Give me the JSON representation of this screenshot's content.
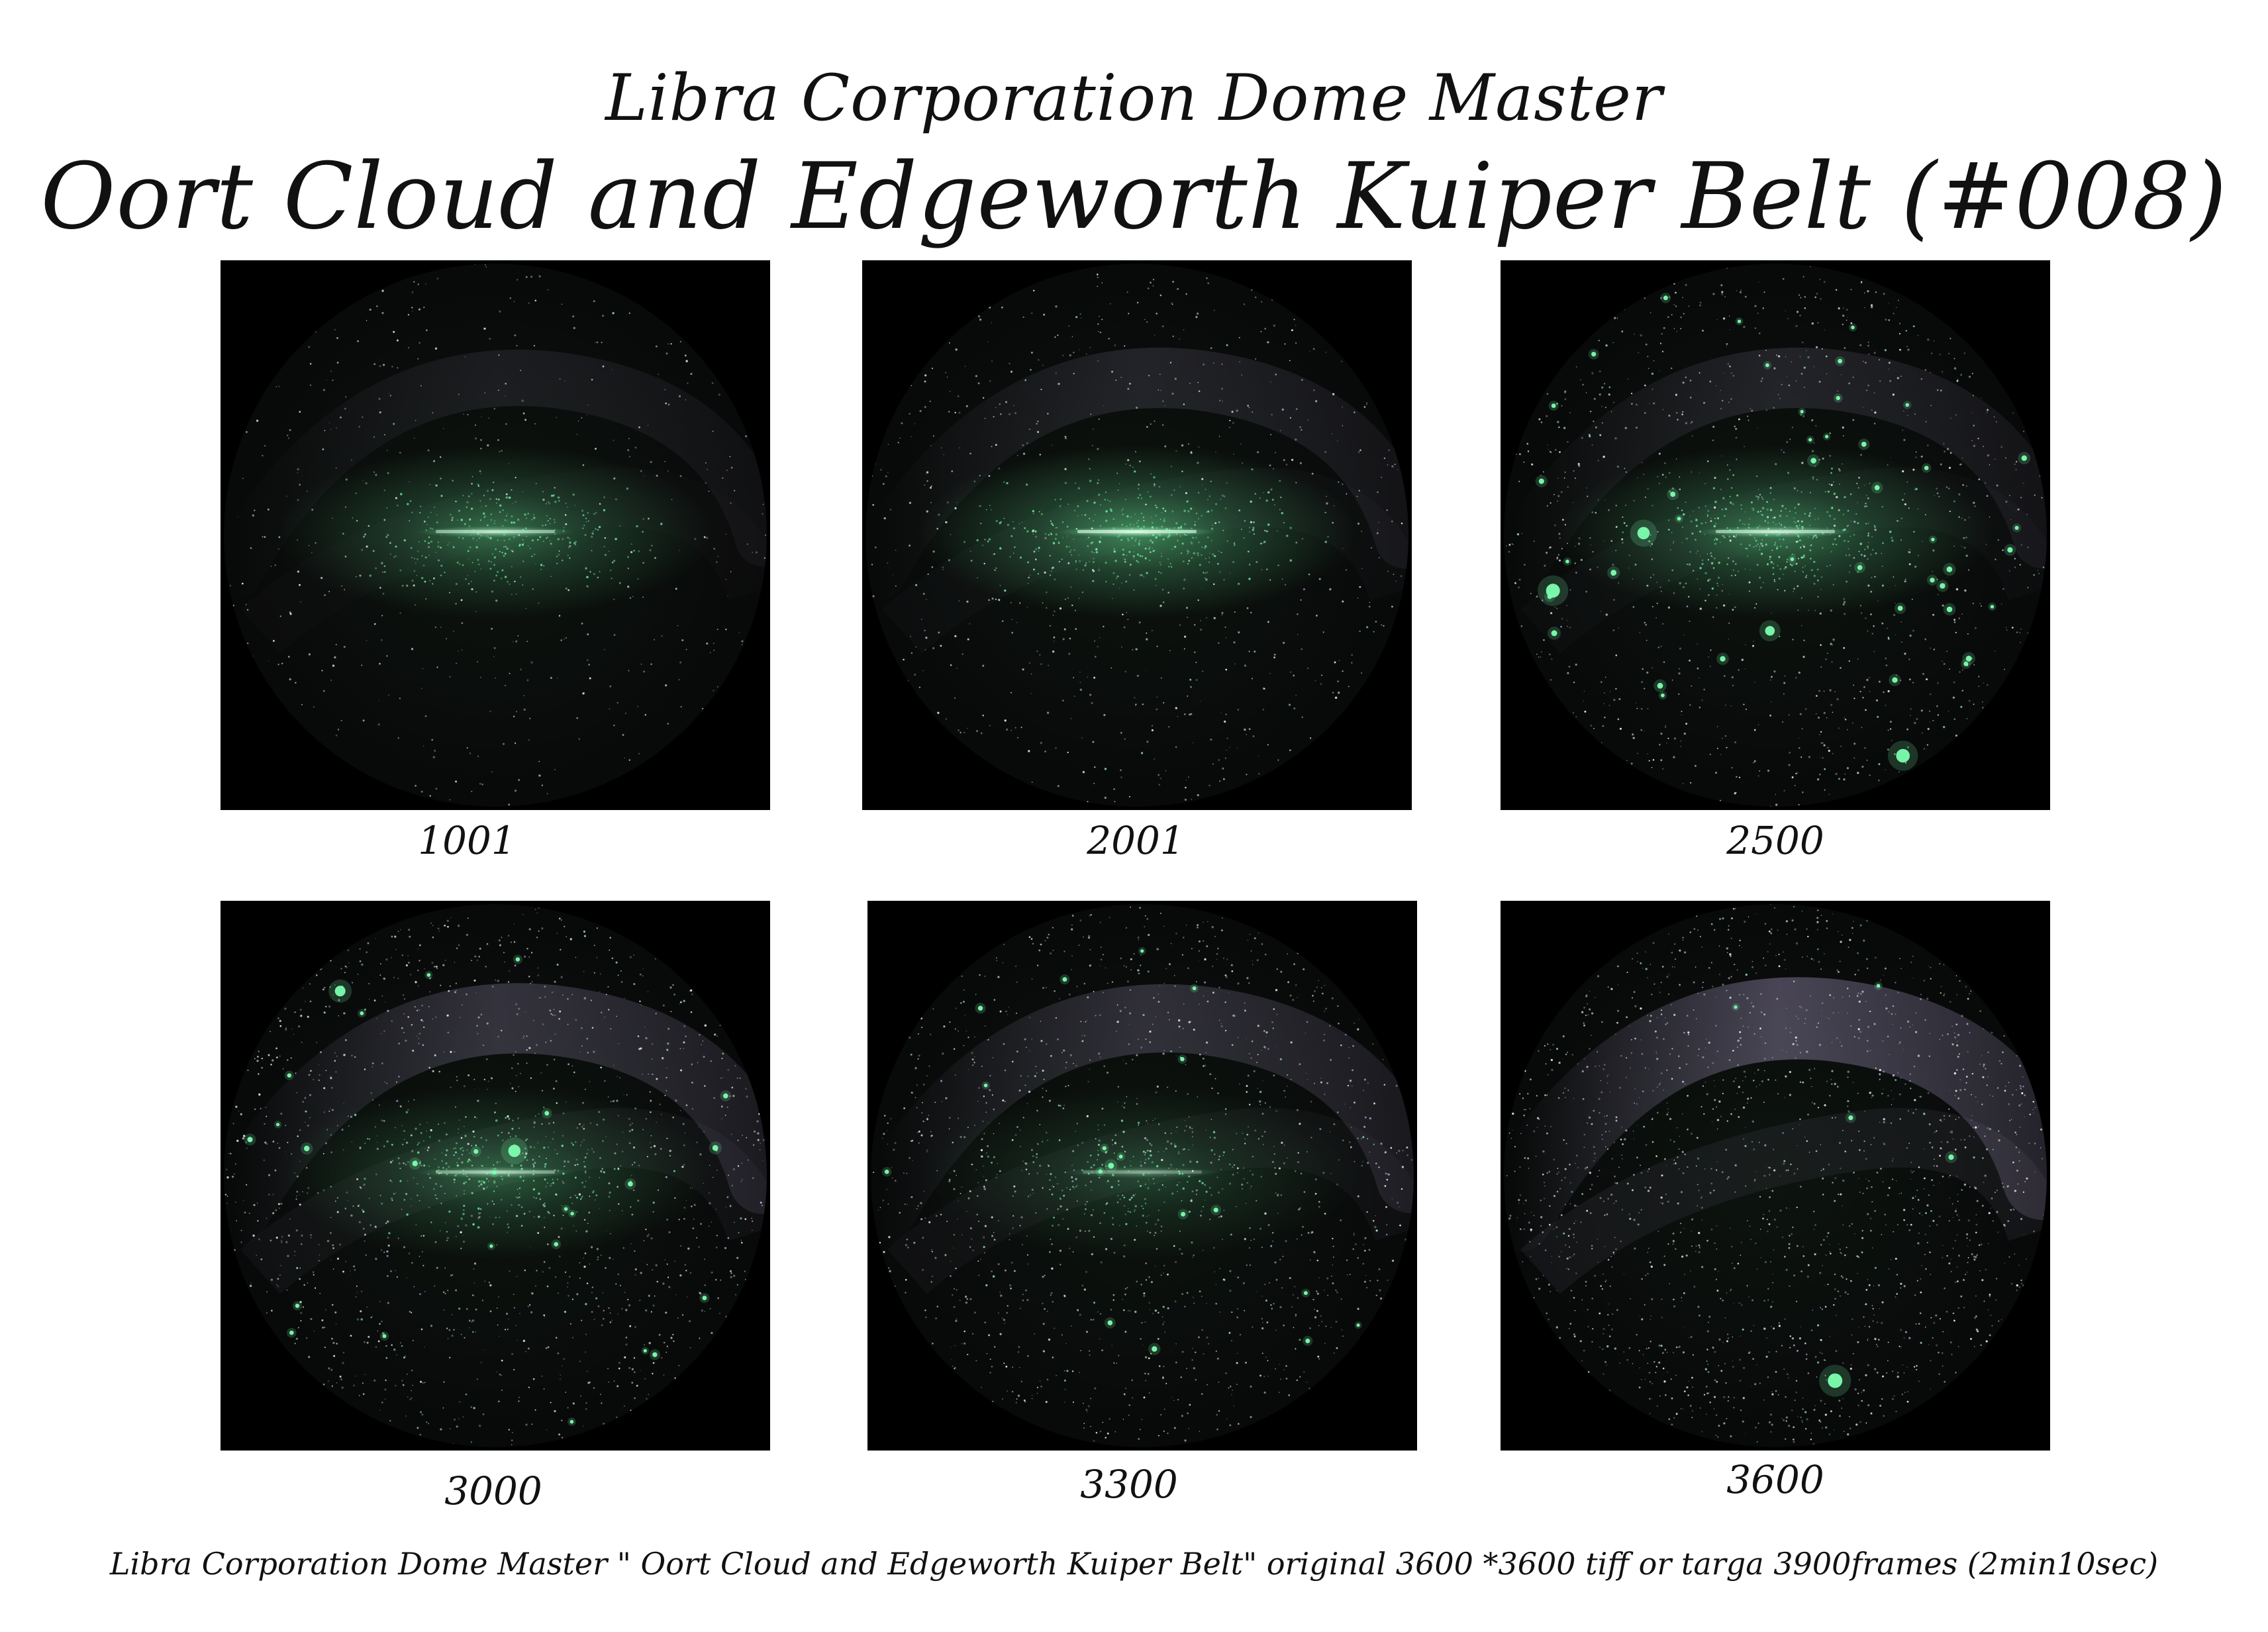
{
  "header": {
    "subtitle": "Libra Corporation Dome Master",
    "title": "Oort Cloud and Edgeworth Kuiper Belt (#008)"
  },
  "frames": [
    {
      "label": "1001",
      "belt": 0.55,
      "stars": 0.15,
      "milky": 0.25,
      "bright": 0.0
    },
    {
      "label": "2001",
      "belt": 0.7,
      "stars": 0.3,
      "milky": 0.35,
      "bright": 0.0
    },
    {
      "label": "2500",
      "belt": 0.6,
      "stars": 0.55,
      "milky": 0.35,
      "bright": 1.0
    },
    {
      "label": "3000",
      "belt": 0.45,
      "stars": 0.75,
      "milky": 0.6,
      "bright": 0.6
    },
    {
      "label": "3300",
      "belt": 0.3,
      "stars": 0.7,
      "milky": 0.55,
      "bright": 0.4
    },
    {
      "label": "3600",
      "belt": 0.0,
      "stars": 1.0,
      "milky": 0.9,
      "bright": 0.1
    }
  ],
  "footer": {
    "caption": "Libra Corporation Dome Master \" Oort Cloud and Edgeworth Kuiper Belt\"  original 3600 *3600 tiff or targa 3900frames (2min10sec)"
  },
  "colors": {
    "background": "#ffffff",
    "panel": "#000000",
    "belt_glow": "#5fd08a",
    "star_green": "#7dffb0",
    "milky_way": "#b8a8d8",
    "text": "#111111"
  }
}
